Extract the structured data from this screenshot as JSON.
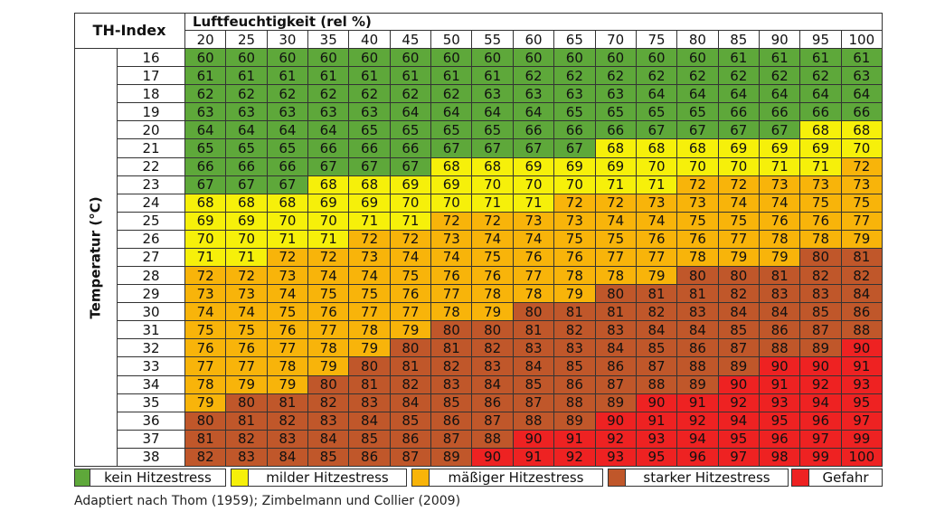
{
  "header": {
    "index_label": "TH-Index",
    "humidity_label": "Luftfeuchtigkeit (rel %)",
    "temperature_label": "Temperatur (°C)",
    "humidity": [
      20,
      25,
      30,
      35,
      40,
      45,
      50,
      55,
      60,
      65,
      70,
      75,
      80,
      85,
      90,
      95,
      100
    ],
    "temperatures": [
      16,
      17,
      18,
      19,
      20,
      21,
      22,
      23,
      24,
      25,
      26,
      27,
      28,
      29,
      30,
      31,
      32,
      33,
      34,
      35,
      36,
      37,
      38
    ]
  },
  "table": {
    "rows": [
      [
        60,
        60,
        60,
        60,
        60,
        60,
        60,
        60,
        60,
        60,
        60,
        60,
        60,
        61,
        61,
        61,
        61
      ],
      [
        61,
        61,
        61,
        61,
        61,
        61,
        61,
        61,
        62,
        62,
        62,
        62,
        62,
        62,
        62,
        62,
        63
      ],
      [
        62,
        62,
        62,
        62,
        62,
        62,
        62,
        63,
        63,
        63,
        63,
        64,
        64,
        64,
        64,
        64,
        64
      ],
      [
        63,
        63,
        63,
        63,
        63,
        64,
        64,
        64,
        64,
        65,
        65,
        65,
        65,
        66,
        66,
        66,
        66
      ],
      [
        64,
        64,
        64,
        64,
        65,
        65,
        65,
        65,
        66,
        66,
        66,
        67,
        67,
        67,
        67,
        68,
        68
      ],
      [
        65,
        65,
        65,
        66,
        66,
        66,
        67,
        67,
        67,
        67,
        68,
        68,
        68,
        69,
        69,
        69,
        70
      ],
      [
        66,
        66,
        66,
        67,
        67,
        67,
        68,
        68,
        69,
        69,
        69,
        70,
        70,
        70,
        71,
        71,
        72
      ],
      [
        67,
        67,
        67,
        68,
        68,
        69,
        69,
        70,
        70,
        70,
        71,
        71,
        72,
        72,
        73,
        73,
        73
      ],
      [
        68,
        68,
        68,
        69,
        69,
        70,
        70,
        71,
        71,
        72,
        72,
        73,
        73,
        74,
        74,
        75,
        75
      ],
      [
        69,
        69,
        70,
        70,
        71,
        71,
        72,
        72,
        73,
        73,
        74,
        74,
        75,
        75,
        76,
        76,
        77
      ],
      [
        70,
        70,
        71,
        71,
        72,
        72,
        73,
        74,
        74,
        75,
        75,
        76,
        76,
        77,
        78,
        78,
        79
      ],
      [
        71,
        71,
        72,
        72,
        73,
        74,
        74,
        75,
        76,
        76,
        77,
        77,
        78,
        79,
        79,
        80,
        81
      ],
      [
        72,
        72,
        73,
        74,
        74,
        75,
        76,
        76,
        77,
        78,
        78,
        79,
        80,
        80,
        81,
        82,
        82
      ],
      [
        73,
        73,
        74,
        75,
        75,
        76,
        77,
        78,
        78,
        79,
        80,
        81,
        81,
        82,
        83,
        83,
        84
      ],
      [
        74,
        74,
        75,
        76,
        77,
        77,
        78,
        79,
        80,
        81,
        81,
        82,
        83,
        84,
        84,
        85,
        86
      ],
      [
        75,
        75,
        76,
        77,
        78,
        79,
        80,
        80,
        81,
        82,
        83,
        84,
        84,
        85,
        86,
        87,
        88
      ],
      [
        76,
        76,
        77,
        78,
        79,
        80,
        81,
        82,
        83,
        83,
        84,
        85,
        86,
        87,
        88,
        89,
        90
      ],
      [
        77,
        77,
        78,
        79,
        80,
        81,
        82,
        83,
        84,
        85,
        86,
        87,
        88,
        89,
        90,
        90,
        91
      ],
      [
        78,
        79,
        79,
        80,
        81,
        82,
        83,
        84,
        85,
        86,
        87,
        88,
        89,
        90,
        91,
        92,
        93
      ],
      [
        79,
        80,
        81,
        82,
        83,
        84,
        85,
        86,
        87,
        88,
        89,
        90,
        91,
        92,
        93,
        94,
        95
      ],
      [
        80,
        81,
        82,
        83,
        84,
        85,
        86,
        87,
        88,
        89,
        90,
        91,
        92,
        94,
        95,
        96,
        97
      ],
      [
        81,
        82,
        83,
        84,
        85,
        86,
        87,
        88,
        90,
        91,
        92,
        93,
        94,
        95,
        96,
        97,
        99
      ],
      [
        82,
        83,
        84,
        85,
        86,
        87,
        89,
        90,
        91,
        92,
        93,
        95,
        96,
        97,
        98,
        99,
        100
      ]
    ]
  },
  "legend": [
    {
      "label": "kein Hitzestress",
      "color": "#5ea83a"
    },
    {
      "label": "milder Hitzestress",
      "color": "#f6f00a"
    },
    {
      "label": "mäßiger Hitzestress",
      "color": "#f8b40a"
    },
    {
      "label": "starker Hitzestress",
      "color": "#c0572a"
    },
    {
      "label": "Gefahr",
      "color": "#ee2222"
    }
  ],
  "caption": "Adaptiert nach Thom (1959); Zimbelmann und Collier (2009)"
}
